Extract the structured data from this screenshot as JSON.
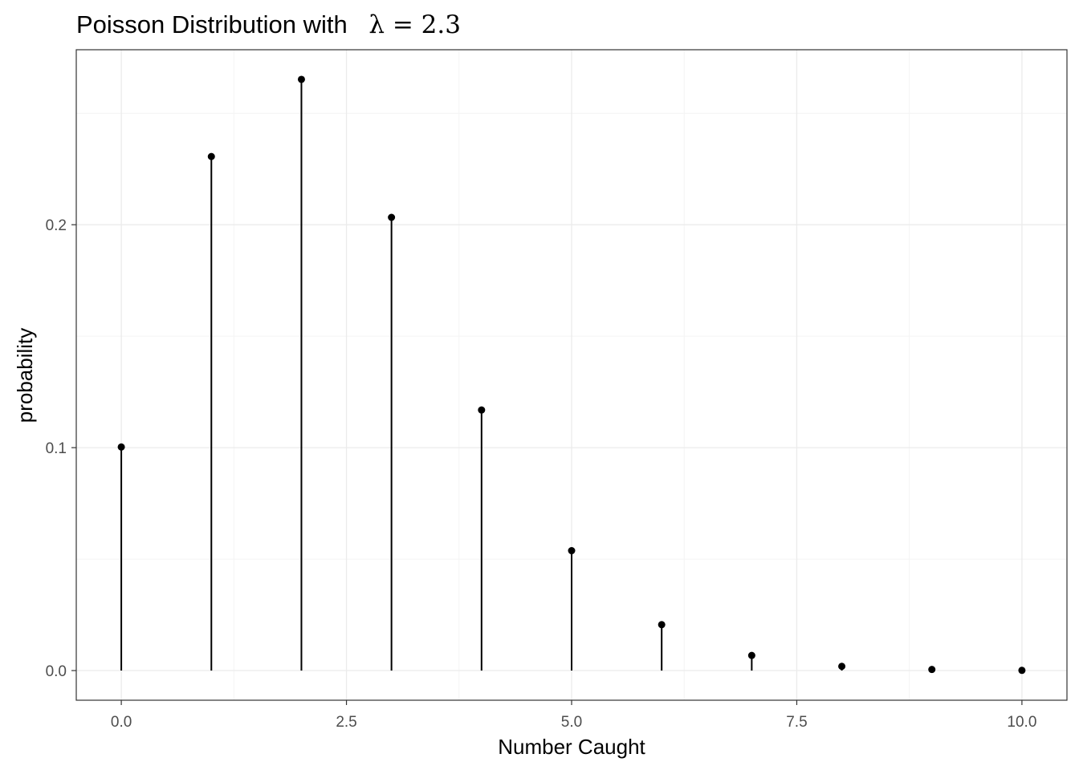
{
  "chart_data": {
    "type": "lollipop",
    "title_text": "Poisson Distribution with",
    "title_math": "λ = 2.3",
    "xlabel": "Number Caught",
    "ylabel": "probability",
    "x": [
      0,
      1,
      2,
      3,
      4,
      5,
      6,
      7,
      8,
      9,
      10
    ],
    "y": [
      0.1003,
      0.2306,
      0.2652,
      0.2033,
      0.1169,
      0.0538,
      0.0206,
      0.0068,
      0.0019,
      0.0005,
      0.0001
    ],
    "xlim": [
      -0.5,
      10.5
    ],
    "ylim": [
      -0.0133,
      0.2785
    ],
    "x_ticks": [
      0.0,
      2.5,
      5.0,
      7.5,
      10.0
    ],
    "x_tick_labels": [
      "0.0",
      "2.5",
      "5.0",
      "7.5",
      "10.0"
    ],
    "x_minor_ticks": [
      1.25,
      3.75,
      6.25,
      8.75
    ],
    "y_ticks": [
      0.0,
      0.1,
      0.2
    ],
    "y_tick_labels": [
      "0.0",
      "0.1",
      "0.2"
    ],
    "y_minor_ticks": [
      0.05,
      0.15,
      0.25
    ],
    "grid": true,
    "legend": "none",
    "colors": {
      "panel_background": "#ffffff",
      "panel_border": "#333333",
      "grid_major": "#ebebeb",
      "grid_minor": "#f4f4f4",
      "points": "#000000",
      "stems": "#000000",
      "tick_text": "#4d4d4d"
    }
  }
}
